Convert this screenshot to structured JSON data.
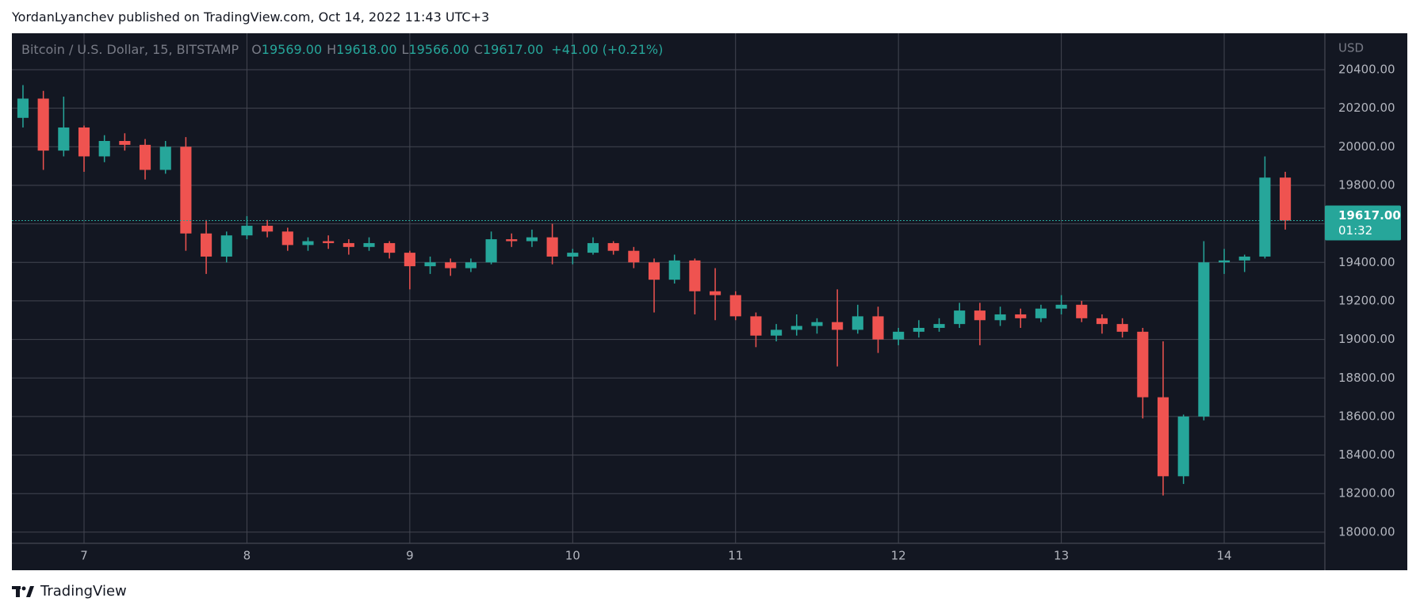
{
  "published": "YordanLyanchev published on TradingView.com, Oct 14, 2022 11:43 UTC+3",
  "footer": "TradingView",
  "chart_data": {
    "type": "candlestick",
    "symbol": "Bitcoin / U.S. Dollar, 15, BITSTAMP",
    "ohlc_header": [
      {
        "key": "O",
        "value": "19569.00"
      },
      {
        "key": "H",
        "value": "19618.00"
      },
      {
        "key": "L",
        "value": "19566.00"
      },
      {
        "key": "C",
        "value": "19617.00"
      }
    ],
    "change": "+41.00 (+0.21%)",
    "currency": "USD",
    "last_price": {
      "value": 19617,
      "label": "19617.00"
    },
    "countdown": "01:32",
    "up_color": "#26a69a",
    "down_color": "#ef5350",
    "grid": true,
    "x": [
      6.625,
      6.75,
      6.875,
      7.0,
      7.125,
      7.25,
      7.375,
      7.5,
      7.625,
      7.75,
      7.875,
      8.0,
      8.125,
      8.25,
      8.375,
      8.5,
      8.625,
      8.75,
      8.875,
      9.0,
      9.125,
      9.25,
      9.375,
      9.5,
      9.625,
      9.75,
      9.875,
      10.0,
      10.125,
      10.25,
      10.375,
      10.5,
      10.625,
      10.75,
      10.875,
      11.0,
      11.125,
      11.25,
      11.375,
      11.5,
      11.625,
      11.75,
      11.875,
      12.0,
      12.125,
      12.25,
      12.375,
      12.5,
      12.625,
      12.75,
      12.875,
      13.0,
      13.125,
      13.25,
      13.375,
      13.5,
      13.625,
      13.75,
      13.875,
      14.0,
      14.125,
      14.25,
      14.375
    ],
    "open": [
      20150,
      20250,
      19980,
      20100,
      19950,
      20030,
      20010,
      19880,
      20000,
      19550,
      19430,
      19540,
      19590,
      19560,
      19490,
      19510,
      19500,
      19480,
      19500,
      19450,
      19380,
      19400,
      19370,
      19400,
      19520,
      19510,
      19530,
      19430,
      19450,
      19500,
      19460,
      19400,
      19310,
      19410,
      19250,
      19230,
      19120,
      19020,
      19050,
      19070,
      19090,
      19050,
      19120,
      19000,
      19040,
      19060,
      19080,
      19150,
      19100,
      19130,
      19110,
      19160,
      19180,
      19110,
      19080,
      19040,
      18700,
      18290,
      18600,
      19400,
      19410,
      19430,
      19840
    ],
    "high": [
      20320,
      20290,
      20260,
      20110,
      20060,
      20070,
      20040,
      20030,
      20050,
      19620,
      19560,
      19640,
      19620,
      19580,
      19530,
      19540,
      19520,
      19530,
      19510,
      19460,
      19430,
      19420,
      19420,
      19560,
      19550,
      19570,
      19600,
      19470,
      19530,
      19510,
      19480,
      19420,
      19440,
      19420,
      19370,
      19250,
      19140,
      19080,
      19130,
      19110,
      19260,
      19180,
      19170,
      19060,
      19100,
      19110,
      19190,
      19190,
      19170,
      19160,
      19180,
      19230,
      19200,
      19130,
      19110,
      19060,
      18990,
      18610,
      19510,
      19470,
      19440,
      19950,
      19870
    ],
    "low": [
      20100,
      19880,
      19950,
      19870,
      19920,
      19980,
      19830,
      19860,
      19460,
      19340,
      19400,
      19520,
      19530,
      19460,
      19460,
      19470,
      19440,
      19460,
      19420,
      19260,
      19340,
      19330,
      19350,
      19390,
      19480,
      19480,
      19390,
      19390,
      19440,
      19440,
      19370,
      19140,
      19290,
      19130,
      19100,
      19100,
      18960,
      18990,
      19020,
      19030,
      18860,
      19030,
      18930,
      18970,
      19010,
      19040,
      19060,
      18970,
      19070,
      19060,
      19090,
      19130,
      19090,
      19030,
      19010,
      18590,
      18190,
      18250,
      18580,
      19340,
      19350,
      19420,
      19570
    ],
    "close": [
      20250,
      19980,
      20100,
      19950,
      20030,
      20010,
      19880,
      20000,
      19550,
      19430,
      19540,
      19590,
      19560,
      19490,
      19510,
      19500,
      19480,
      19500,
      19450,
      19380,
      19400,
      19370,
      19400,
      19520,
      19510,
      19530,
      19430,
      19450,
      19500,
      19460,
      19400,
      19310,
      19410,
      19250,
      19230,
      19120,
      19020,
      19050,
      19070,
      19090,
      19050,
      19120,
      19000,
      19040,
      19060,
      19080,
      19150,
      19100,
      19130,
      19110,
      19160,
      19180,
      19110,
      19080,
      19040,
      18700,
      18290,
      18600,
      19400,
      19410,
      19430,
      19840,
      19617
    ],
    "xlim": [
      6.557,
      14.618
    ],
    "xticks": [
      7,
      8,
      9,
      10,
      11,
      12,
      13,
      14
    ],
    "ylim": [
      17942,
      20589
    ],
    "yticks": [
      {
        "value": 18000,
        "label": "18000.00"
      },
      {
        "value": 18200,
        "label": "18200.00"
      },
      {
        "value": 18400,
        "label": "18400.00"
      },
      {
        "value": 18600,
        "label": "18600.00"
      },
      {
        "value": 18800,
        "label": "18800.00"
      },
      {
        "value": 19000,
        "label": "19000.00"
      },
      {
        "value": 19200,
        "label": "19200.00"
      },
      {
        "value": 19400,
        "label": "19400.00"
      },
      {
        "value": 19600,
        "label": "19600.00"
      },
      {
        "value": 19800,
        "label": "19800.00"
      },
      {
        "value": 20000,
        "label": "20000.00"
      },
      {
        "value": 20200,
        "label": "20200.00"
      },
      {
        "value": 20400,
        "label": "20400.00"
      }
    ]
  }
}
